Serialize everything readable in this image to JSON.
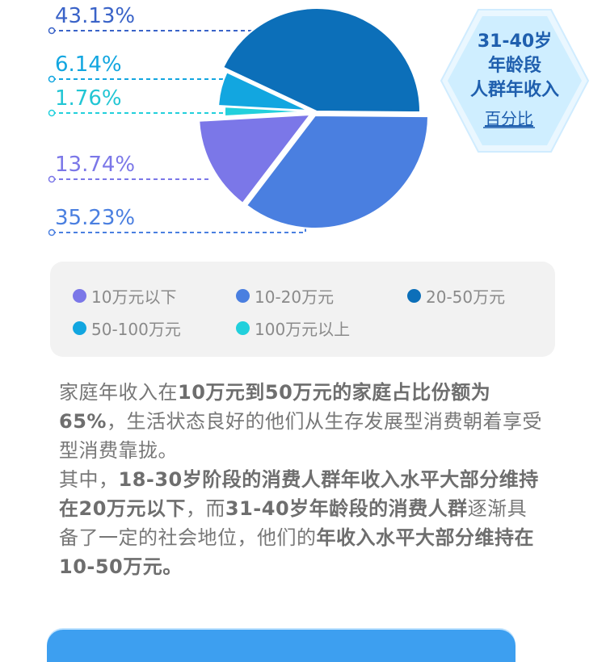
{
  "chart_data": {
    "type": "pie",
    "slices": [
      {
        "label": "20-50万元",
        "value": 43.13,
        "display": "43.13%",
        "color": "#0c6fb9"
      },
      {
        "label": "10-20万元",
        "value": 35.23,
        "display": "35.23%",
        "color": "#4a7fe0"
      },
      {
        "label": "10万元以下",
        "value": 13.74,
        "display": "13.74%",
        "color": "#7b77e8"
      },
      {
        "label": "100万元以上",
        "value": 1.76,
        "display": "1.76%",
        "color": "#22d0dc"
      },
      {
        "label": "50-100万元",
        "value": 6.14,
        "display": "6.14%",
        "color": "#12a6e0"
      }
    ],
    "legend": [
      {
        "label": "10万元以下",
        "color": "#7b77e8"
      },
      {
        "label": "10-20万元",
        "color": "#4a7fe0"
      },
      {
        "label": "20-50万元",
        "color": "#0c6fb9"
      },
      {
        "label": "50-100万元",
        "color": "#12a6e0"
      },
      {
        "label": "100万元以上",
        "color": "#22d0dc"
      }
    ]
  },
  "hex": {
    "line1": "31-40岁",
    "line2": "年龄段",
    "line3": "人群年收入",
    "line4": "百分比"
  },
  "paragraphs": {
    "p1_a": "家庭年收入在",
    "p1_b": "10万元到50万元的家庭占比份额为65%",
    "p1_c": "，生活状态良好的他们从生存发展型消费朝着享受型消费靠拢。",
    "p2_a": "其中，",
    "p2_b": "18-30岁阶段的消费人群年收入水平大部分维持在20万元以下",
    "p2_c": "，而",
    "p2_d": "31-40岁年龄段的消费人群",
    "p2_e": "逐渐具备了一定的社会地位，他们的",
    "p2_f": "年收入水平大部分维持在10-50万元。"
  }
}
